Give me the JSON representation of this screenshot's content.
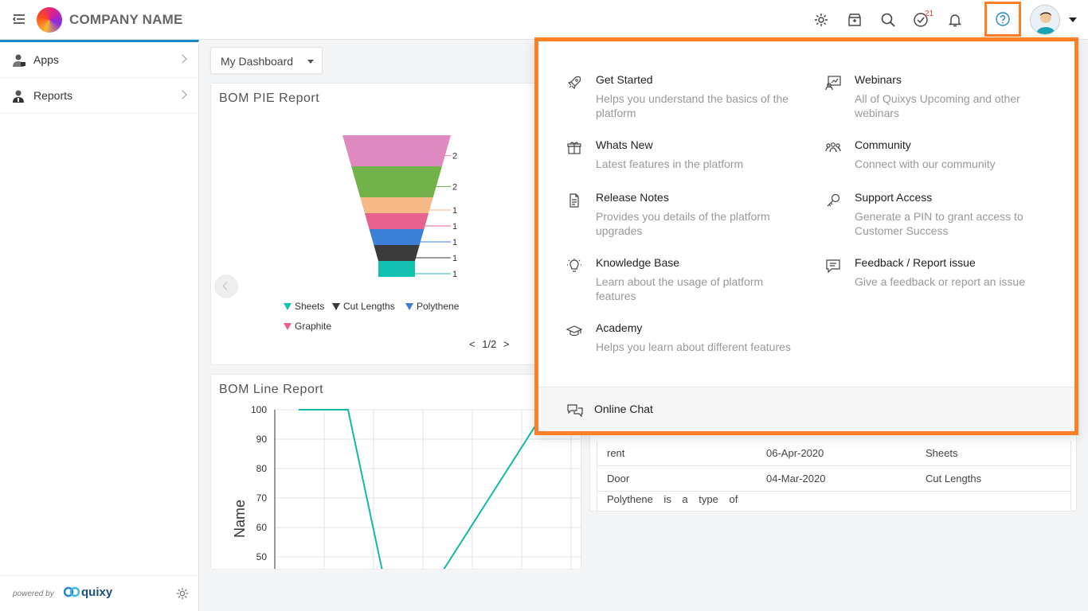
{
  "header": {
    "company_name": "COMPANY NAME",
    "notification_badge": "21",
    "icons": [
      "settings-icon",
      "store-icon",
      "search-icon",
      "tasks-icon",
      "bell-icon",
      "help-icon"
    ]
  },
  "sidebar": {
    "items": [
      {
        "label": "Apps",
        "icon": "apps-user-icon"
      },
      {
        "label": "Reports",
        "icon": "reports-user-icon"
      }
    ],
    "powered_by": "powered by",
    "brand": "quixy"
  },
  "main": {
    "dashboard_select": "My Dashboard",
    "pie_card": {
      "title": "BOM PIE Report",
      "legend": [
        "Sheets",
        "Cut Lengths",
        "Polythene",
        "Graphite"
      ],
      "pager": "1/2"
    },
    "line_card": {
      "title": "BOM Line Report",
      "ylabel": "Name"
    },
    "table": {
      "rows": [
        {
          "c1": "rent",
          "c2": "06-Apr-2020",
          "c3": "Sheets"
        },
        {
          "c1": "Door",
          "c2": "04-Mar-2020",
          "c3": "Cut Lengths"
        },
        {
          "c1": "Polythene is a type of",
          "c2": "",
          "c3": ""
        }
      ]
    }
  },
  "help_menu": {
    "items": [
      {
        "title": "Get Started",
        "desc": "Helps you understand the basics of the platform",
        "icon": "rocket-icon"
      },
      {
        "title": "Webinars",
        "desc": "All of Quixys Upcoming and other webinars",
        "icon": "webinar-icon"
      },
      {
        "title": "Whats New",
        "desc": "Latest features in the platform",
        "icon": "gift-icon"
      },
      {
        "title": "Community",
        "desc": "Connect with our community",
        "icon": "community-icon"
      },
      {
        "title": "Release Notes",
        "desc": "Provides you details of the platform upgrades",
        "icon": "document-icon"
      },
      {
        "title": "Support Access",
        "desc": "Generate a PIN to grant access to Customer Success",
        "icon": "key-icon"
      },
      {
        "title": "Knowledge Base",
        "desc": "Learn about the usage of platform features",
        "icon": "lightbulb-icon"
      },
      {
        "title": "Feedback / Report issue",
        "desc": "Give a feedback or report an issue",
        "icon": "feedback-icon"
      },
      {
        "title": "Academy",
        "desc": "Helps you learn about different features",
        "icon": "graduation-cap-icon"
      }
    ],
    "online_chat": "Online Chat"
  },
  "chart_data": [
    {
      "type": "funnel",
      "title": "BOM PIE Report",
      "categories": [
        "",
        "",
        "",
        "",
        "",
        "",
        ""
      ],
      "values": [
        2,
        2,
        1,
        1,
        1,
        1,
        1
      ],
      "colors": [
        "#de89bf",
        "#73b24b",
        "#f7b985",
        "#e7628f",
        "#3b7fd6",
        "#3a3a3a",
        "#14c1b1"
      ],
      "legend": [
        "Sheets",
        "Cut Lengths",
        "Polythene",
        "Graphite"
      ],
      "legend_colors": [
        "#14c1b1",
        "#3a3a3a",
        "#3b7fd6",
        "#e7628f"
      ]
    },
    {
      "type": "line",
      "title": "BOM Line Report",
      "ylabel": "Name",
      "yticks": [
        100,
        90,
        80,
        70,
        60,
        50
      ],
      "ylim": [
        50,
        100
      ],
      "series": [
        {
          "values": [
            100,
            100,
            44,
            44,
            100
          ],
          "color": "#14b8a6"
        }
      ]
    }
  ]
}
